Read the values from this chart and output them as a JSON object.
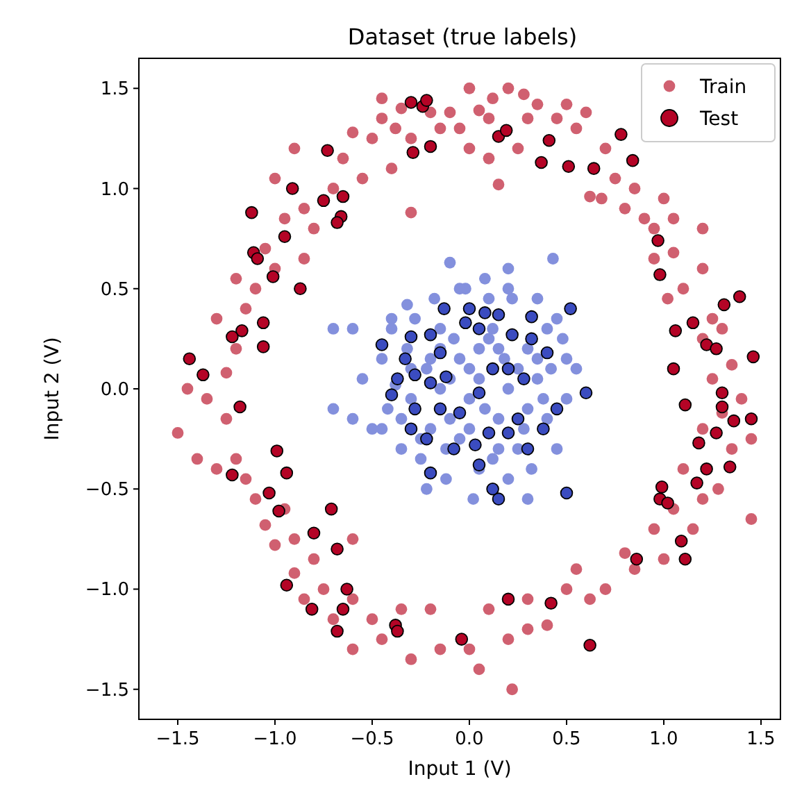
{
  "chart_data": {
    "type": "scatter",
    "title": "Dataset (true labels)",
    "xlabel": "Input 1 (V)",
    "ylabel": "Input 2 (V)",
    "xlim": [
      -1.7,
      1.6
    ],
    "ylim": [
      -1.65,
      1.65
    ],
    "xticks": [
      {
        "value": -1.5,
        "label": "−1.5"
      },
      {
        "value": -1,
        "label": "−1.0"
      },
      {
        "value": -0.5,
        "label": "−0.5"
      },
      {
        "value": 0,
        "label": "0.0"
      },
      {
        "value": 0.5,
        "label": "0.5"
      },
      {
        "value": 1,
        "label": "1.0"
      },
      {
        "value": 1.5,
        "label": "1.5"
      }
    ],
    "yticks": [
      {
        "value": -1.5,
        "label": "−1.5"
      },
      {
        "value": -1,
        "label": "−1.0"
      },
      {
        "value": -0.5,
        "label": "−0.5"
      },
      {
        "value": 0,
        "label": "0.0"
      },
      {
        "value": 0.5,
        "label": "0.5"
      },
      {
        "value": 1,
        "label": "1.0"
      },
      {
        "value": 1.5,
        "label": "1.5"
      }
    ],
    "grid": false,
    "legend": "top right",
    "marker": "circle",
    "series": [
      {
        "name": "Train",
        "color": "#d06070",
        "x": [
          -0.5,
          -0.45,
          -0.38,
          -0.35,
          -0.2,
          -0.1,
          -0.05,
          0.05,
          0.1,
          0.12,
          0.2,
          0.28,
          0.3,
          0.35,
          0.45,
          0.5,
          0.55,
          0.6,
          0.25,
          0.1,
          0,
          -0.15,
          -0.3,
          -0.6,
          -0.65,
          -0.55,
          -0.4,
          0.15,
          -0.3,
          0.7,
          0.75,
          0.68,
          0.8,
          0.85,
          0.9,
          0.95,
          1,
          1.05,
          1.05,
          0.95,
          1.1,
          1.02,
          1.2,
          1.25,
          1.2,
          1.3,
          1.35,
          1.25,
          1.4,
          1.3,
          1.2,
          1.35,
          1.45,
          1.28,
          1.2,
          1.1,
          1.05,
          1.15,
          0.95,
          1,
          0.8,
          0.85,
          0.7,
          0.62,
          0.55,
          0.5,
          0.4,
          0.3,
          0.3,
          0.2,
          0.1,
          0,
          0.05,
          -0.15,
          -0.2,
          -0.3,
          -0.35,
          -0.45,
          -0.5,
          -0.6,
          0.22,
          -0.6,
          -0.7,
          -0.75,
          -0.8,
          -0.85,
          -0.9,
          -0.9,
          -1,
          -0.95,
          -1.05,
          -1.1,
          -1.15,
          -1.2,
          -1.3,
          -1.4,
          -1.25,
          -1.35,
          -1.45,
          -1.5,
          -1.25,
          -1.2,
          -1.3,
          -1.15,
          -1.2,
          -1.1,
          -1.05,
          -1,
          -0.95,
          -0.85,
          -0.8,
          -0.85,
          -0.7,
          -0.9,
          -1,
          1.2,
          0.62,
          1.45,
          -0.45,
          0,
          -0.6
        ],
        "values": [
          1.25,
          1.35,
          1.3,
          1.4,
          1.38,
          1.38,
          1.3,
          1.39,
          1.35,
          1.45,
          1.5,
          1.47,
          1.35,
          1.42,
          1.35,
          1.42,
          1.3,
          1.38,
          1.2,
          1.15,
          1.2,
          1.3,
          1.25,
          1.28,
          1.15,
          1.05,
          1.1,
          1.02,
          0.88,
          1.2,
          1.05,
          0.95,
          0.9,
          1,
          0.85,
          0.8,
          0.95,
          0.85,
          0.68,
          0.65,
          0.5,
          0.45,
          0.6,
          0.35,
          0.25,
          0.3,
          0.12,
          0.05,
          -0.05,
          -0.12,
          -0.2,
          -0.3,
          -0.25,
          -0.5,
          -0.55,
          -0.4,
          -0.6,
          -0.7,
          -0.7,
          -0.85,
          -0.82,
          -0.9,
          -1,
          -1.05,
          -0.9,
          -1,
          -1.18,
          -1.2,
          -1.05,
          -1.25,
          -1.1,
          -1.3,
          -1.4,
          -1.3,
          -1.1,
          -1.35,
          -1.1,
          -1.25,
          -1.15,
          -1.3,
          -1.5,
          -1.05,
          -1.15,
          -1,
          -0.85,
          -1.05,
          -0.92,
          -0.75,
          -0.78,
          -0.6,
          -0.68,
          -0.55,
          -0.45,
          -0.35,
          -0.4,
          -0.35,
          -0.15,
          -0.05,
          0,
          -0.22,
          0.08,
          0.2,
          0.35,
          0.4,
          0.55,
          0.5,
          0.7,
          0.6,
          0.85,
          0.9,
          0.8,
          0.65,
          1,
          1.2,
          1.05,
          0.8,
          0.96,
          -0.65,
          1.45,
          1.5,
          -0.75
        ]
      },
      {
        "color": "#8390dd",
        "x": [
          -0.55,
          -0.5,
          -0.45,
          -0.42,
          -0.4,
          -0.38,
          -0.35,
          -0.32,
          -0.3,
          -0.28,
          -0.25,
          -0.22,
          -0.2,
          -0.18,
          -0.15,
          -0.12,
          -0.1,
          -0.08,
          -0.05,
          -0.02,
          0,
          0.02,
          0.05,
          0.08,
          0.1,
          0.12,
          0.15,
          0.18,
          0.2,
          0.22,
          0.25,
          0.28,
          0.3,
          0.32,
          0.35,
          0.38,
          0.4,
          0.42,
          0.45,
          0.48,
          0.5,
          0.55,
          -0.3,
          -0.2,
          -0.1,
          0,
          0.1,
          0.2,
          0.3,
          -0.25,
          -0.15,
          -0.05,
          0.05,
          0.15,
          0.25,
          0.35,
          -0.35,
          0.4,
          -0.45,
          0.45,
          -0.4,
          0.5,
          -0.15,
          0.15,
          0,
          -0.05,
          0.08,
          0.2,
          -0.22,
          0.3,
          -0.7,
          -0.6,
          -0.7,
          -0.1,
          0.43,
          0.2,
          -0.6,
          0.05,
          -0.32,
          0.35,
          0.12,
          -0.12
        ],
        "values": [
          0.05,
          -0.2,
          0.15,
          -0.1,
          0.3,
          0.02,
          -0.3,
          0.2,
          -0.05,
          0.35,
          -0.35,
          0.1,
          -0.2,
          0.45,
          0.2,
          -0.45,
          0.05,
          0.25,
          -0.25,
          0.5,
          0.1,
          -0.55,
          0.2,
          -0.1,
          0.45,
          0.3,
          -0.3,
          0.15,
          -0.45,
          0.45,
          0.1,
          -0.2,
          0.2,
          -0.4,
          0.05,
          -0.05,
          0.3,
          0.1,
          -0.3,
          0.25,
          0.15,
          0.1,
          0.1,
          0.15,
          -0.15,
          -0.05,
          0.25,
          0,
          -0.1,
          -0.25,
          0.3,
          0.15,
          0.05,
          0.2,
          -0.3,
          0.15,
          -0.15,
          -0.15,
          -0.2,
          0.35,
          0.35,
          -0.05,
          0,
          -0.15,
          -0.2,
          0.5,
          0.55,
          0.5,
          -0.5,
          -0.55,
          0.3,
          -0.15,
          -0.1,
          0.63,
          0.65,
          0.6,
          0.3,
          -0.4,
          0.42,
          0.45,
          -0.35,
          -0.3
        ]
      },
      {
        "name": "Test",
        "color": "#b40426",
        "x": [
          -0.3,
          -0.24,
          -0.22,
          -0.29,
          -0.2,
          -0.73,
          -0.91,
          -0.75,
          -0.65,
          -0.66,
          -0.68,
          -1.12,
          -0.95,
          -1.11,
          -1.09,
          -1.01,
          -0.87,
          -1.06,
          -1.17,
          -1.22,
          -1.06,
          -1.44,
          -1.37,
          0.15,
          0.19,
          0.41,
          0.37,
          0.51,
          0.64,
          0.78,
          0.84,
          0.97,
          0.98,
          1.31,
          1.39,
          1.06,
          1.15,
          1.22,
          1.27,
          1.46,
          1.05,
          1.3,
          1.11,
          1.3,
          1.36,
          1.45,
          1.27,
          1.18,
          1.22,
          1.34,
          1.17,
          0.99,
          0.98,
          1.02,
          1.09,
          1.11,
          0.86,
          0.2,
          0.42,
          -0.04,
          0.62,
          -1.18,
          -0.99,
          -1.22,
          -0.94,
          -1.03,
          -0.98,
          -0.71,
          -0.8,
          -0.68,
          -0.63,
          -0.94,
          -0.81,
          -0.65,
          -0.68,
          -0.38,
          -0.37
        ],
        "values": [
          1.43,
          1.41,
          1.44,
          1.18,
          1.21,
          1.19,
          1,
          0.94,
          0.96,
          0.86,
          0.83,
          0.88,
          0.76,
          0.68,
          0.65,
          0.56,
          0.5,
          0.33,
          0.29,
          0.26,
          0.21,
          0.15,
          0.07,
          1.26,
          1.29,
          1.24,
          1.13,
          1.11,
          1.1,
          1.27,
          1.14,
          0.74,
          0.57,
          0.42,
          0.46,
          0.29,
          0.33,
          0.22,
          0.2,
          0.16,
          0.1,
          -0.02,
          -0.08,
          -0.09,
          -0.16,
          -0.15,
          -0.22,
          -0.27,
          -0.4,
          -0.39,
          -0.47,
          -0.49,
          -0.55,
          -0.57,
          -0.76,
          -0.85,
          -0.85,
          -1.05,
          -1.07,
          -1.25,
          -1.28,
          -0.09,
          -0.31,
          -0.43,
          -0.42,
          -0.52,
          -0.61,
          -0.6,
          -0.72,
          -0.8,
          -1,
          -0.98,
          -1.1,
          -1.1,
          -1.21,
          -1.18,
          -1.21
        ]
      },
      {
        "color": "#3b4cc0",
        "x": [
          -0.45,
          -0.33,
          -0.3,
          -0.2,
          -0.13,
          -0.02,
          0,
          0.08,
          0.15,
          0.32,
          0.52,
          0.05,
          -0.37,
          -0.28,
          -0.2,
          -0.12,
          -0.4,
          -0.28,
          -0.15,
          -0.05,
          0.05,
          0.12,
          0.2,
          0.28,
          0.22,
          0.32,
          0.4,
          -0.15,
          0.6,
          -0.3,
          -0.22,
          -0.08,
          0.03,
          0.1,
          0.2,
          0.3,
          0.38,
          -0.2,
          0.05,
          0.15,
          0.12,
          0.5,
          0.45,
          0.25
        ],
        "values": [
          0.22,
          0.15,
          0.26,
          0.27,
          0.4,
          0.33,
          0.4,
          0.38,
          0.37,
          0.36,
          0.4,
          0.3,
          0.05,
          0.07,
          0.03,
          0.06,
          -0.03,
          -0.1,
          -0.1,
          -0.12,
          -0.02,
          0.1,
          0.1,
          0.05,
          0.27,
          0.25,
          0.18,
          0.18,
          -0.02,
          -0.2,
          -0.25,
          -0.3,
          -0.28,
          -0.22,
          -0.22,
          -0.3,
          -0.2,
          -0.42,
          -0.38,
          -0.55,
          -0.5,
          -0.52,
          -0.1,
          -0.15
        ]
      }
    ]
  }
}
